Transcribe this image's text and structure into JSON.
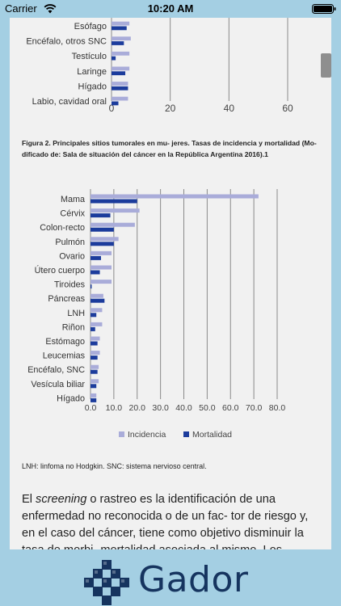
{
  "status_bar": {
    "carrier": "Carrier",
    "time": "10:20 AM"
  },
  "colors": {
    "incidence": "#a9acd9",
    "mortality": "#1c3c9c",
    "grid": "#8a8a8a",
    "brand": "#16345f"
  },
  "chart_data": [
    {
      "type": "bar",
      "orientation": "horizontal",
      "partial": true,
      "categories": [
        "Esófago",
        "Encéfalo, otros SNC",
        "Testículo",
        "Laringe",
        "Hígado",
        "Labio, cavidad oral"
      ],
      "series": [
        {
          "name": "Incidencia",
          "values": [
            6.5,
            7.0,
            6.5,
            6.5,
            6.0,
            6.0
          ]
        },
        {
          "name": "Mortalidad",
          "values": [
            5.5,
            4.5,
            1.5,
            5.0,
            6.0,
            2.5
          ]
        }
      ],
      "xticks": [
        "0",
        "20",
        "40",
        "60"
      ],
      "xlim": [
        0,
        64
      ]
    },
    {
      "type": "bar",
      "orientation": "horizontal",
      "categories": [
        "Mama",
        "Cérvix",
        "Colon-recto",
        "Pulmón",
        "Ovario",
        "Útero cuerpo",
        "Tiroides",
        "Páncreas",
        "LNH",
        "Riñon",
        "Estómago",
        "Leucemias",
        "Encéfalo, SNC",
        "Vesícula biliar",
        "Hígado"
      ],
      "series": [
        {
          "name": "Incidencia",
          "values": [
            72.0,
            21.0,
            19.0,
            12.0,
            9.0,
            9.0,
            9.0,
            5.5,
            5.0,
            5.0,
            4.0,
            4.0,
            3.5,
            3.5,
            2.5
          ]
        },
        {
          "name": "Mortalidad",
          "values": [
            20.0,
            8.5,
            10.0,
            10.0,
            4.5,
            4.0,
            0.5,
            6.0,
            2.5,
            2.0,
            3.0,
            3.0,
            3.0,
            2.5,
            2.5
          ]
        }
      ],
      "xticks": [
        "0.0",
        "10.0",
        "20.0",
        "30.0",
        "40.0",
        "50.0",
        "60.0",
        "70.0",
        "80.0"
      ],
      "xlim": [
        0,
        80
      ],
      "legend": [
        "Incidencia",
        "Mortalidad"
      ],
      "legend_position": "bottom"
    }
  ],
  "caption": "Figura 2. Principales sitios tumorales en mu- jeres. Tasas de incidencia y mortalidad (Mo- dificado de: Sala de situación del cáncer en la República Argentina 2016).1",
  "note": "LNH: linfoma no Hodgkin. SNC: sistema nervioso central.",
  "body": {
    "prefix": "El ",
    "emphasis": "screening",
    "rest": " o rastreo es la identificación de una enfermedad no reconocida o de un fac- tor de riesgo y, en el caso del cáncer, tiene como objetivo disminuir la tasa de morbi- mortalidad asociada al mismo. Los"
  },
  "footer": {
    "logo_text": "Gador"
  }
}
